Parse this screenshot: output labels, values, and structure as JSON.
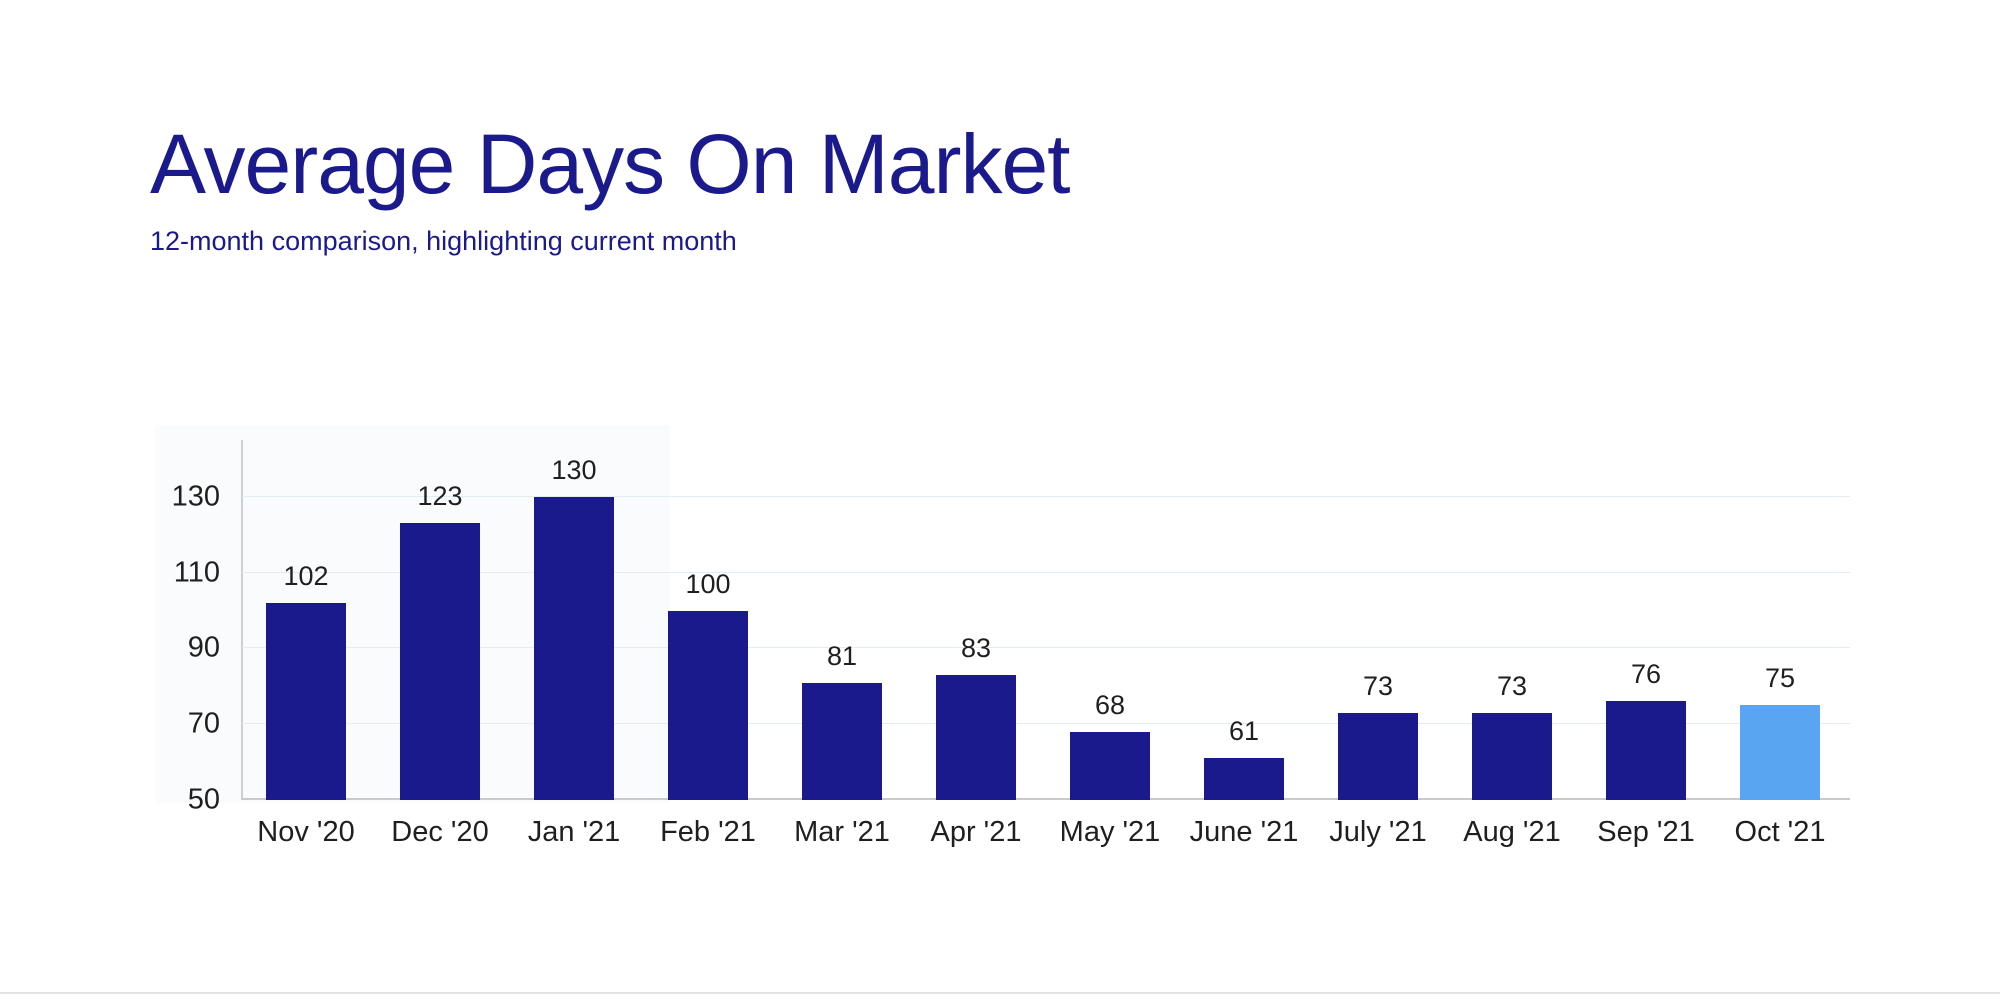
{
  "page": {
    "title": "Average Days On Market",
    "subtitle": "12-month comparison, highlighting current month"
  },
  "colors": {
    "title_text": "#1A1A8C",
    "bar": "#1A1A8C",
    "highlight_bar": "#5AA5F2",
    "label_text": "#1f1f1f",
    "gridline": "#e3ecf3",
    "axis_line": "#cfcfcf"
  },
  "chart_data": {
    "type": "bar",
    "title": "Average Days On Market",
    "subtitle": "12-month comparison, highlighting current month",
    "categories": [
      "Nov '20",
      "Dec '20",
      "Jan '21",
      "Feb '21",
      "Mar '21",
      "Apr '21",
      "May '21",
      "June '21",
      "July '21",
      "Aug '21",
      "Sep '21",
      "Oct '21"
    ],
    "values": [
      102,
      123,
      130,
      100,
      81,
      83,
      68,
      61,
      73,
      73,
      76,
      75
    ],
    "highlight_index": 11,
    "highlight_meaning": "current month",
    "xlabel": "",
    "ylabel": "",
    "ylim": [
      50,
      145
    ],
    "yticks": [
      50,
      70,
      90,
      110,
      130
    ],
    "grid": true,
    "legend": false,
    "bar_color": "#1A1A8C",
    "highlight_color": "#5AA5F2"
  }
}
